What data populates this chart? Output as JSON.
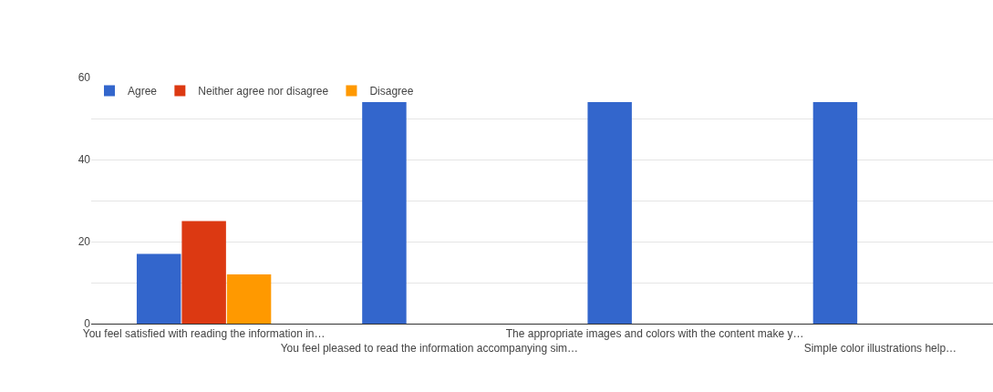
{
  "chart_data": {
    "type": "bar",
    "categories": [
      "You feel satisfied with reading the information in…",
      "You feel pleased to read the information accompanying sim…",
      "The appropriate images and colors with the content make y…",
      "Simple color illustrations help…"
    ],
    "series": [
      {
        "name": "Agree",
        "color": "#3366cc",
        "values": [
          17,
          54,
          54,
          54
        ]
      },
      {
        "name": "Neither agree nor disagree",
        "color": "#dc3912",
        "values": [
          25,
          0,
          0,
          0
        ]
      },
      {
        "name": "Disagree",
        "color": "#ff9900",
        "values": [
          12,
          0,
          0,
          0
        ]
      }
    ],
    "ylim": [
      0,
      60
    ],
    "yticks": [
      0,
      {
        "value": 10,
        "label": null
      },
      20,
      {
        "value": 30,
        "label": null
      },
      40,
      {
        "value": 50,
        "label": null
      },
      60
    ],
    "grid": "y",
    "legend": "top left"
  }
}
